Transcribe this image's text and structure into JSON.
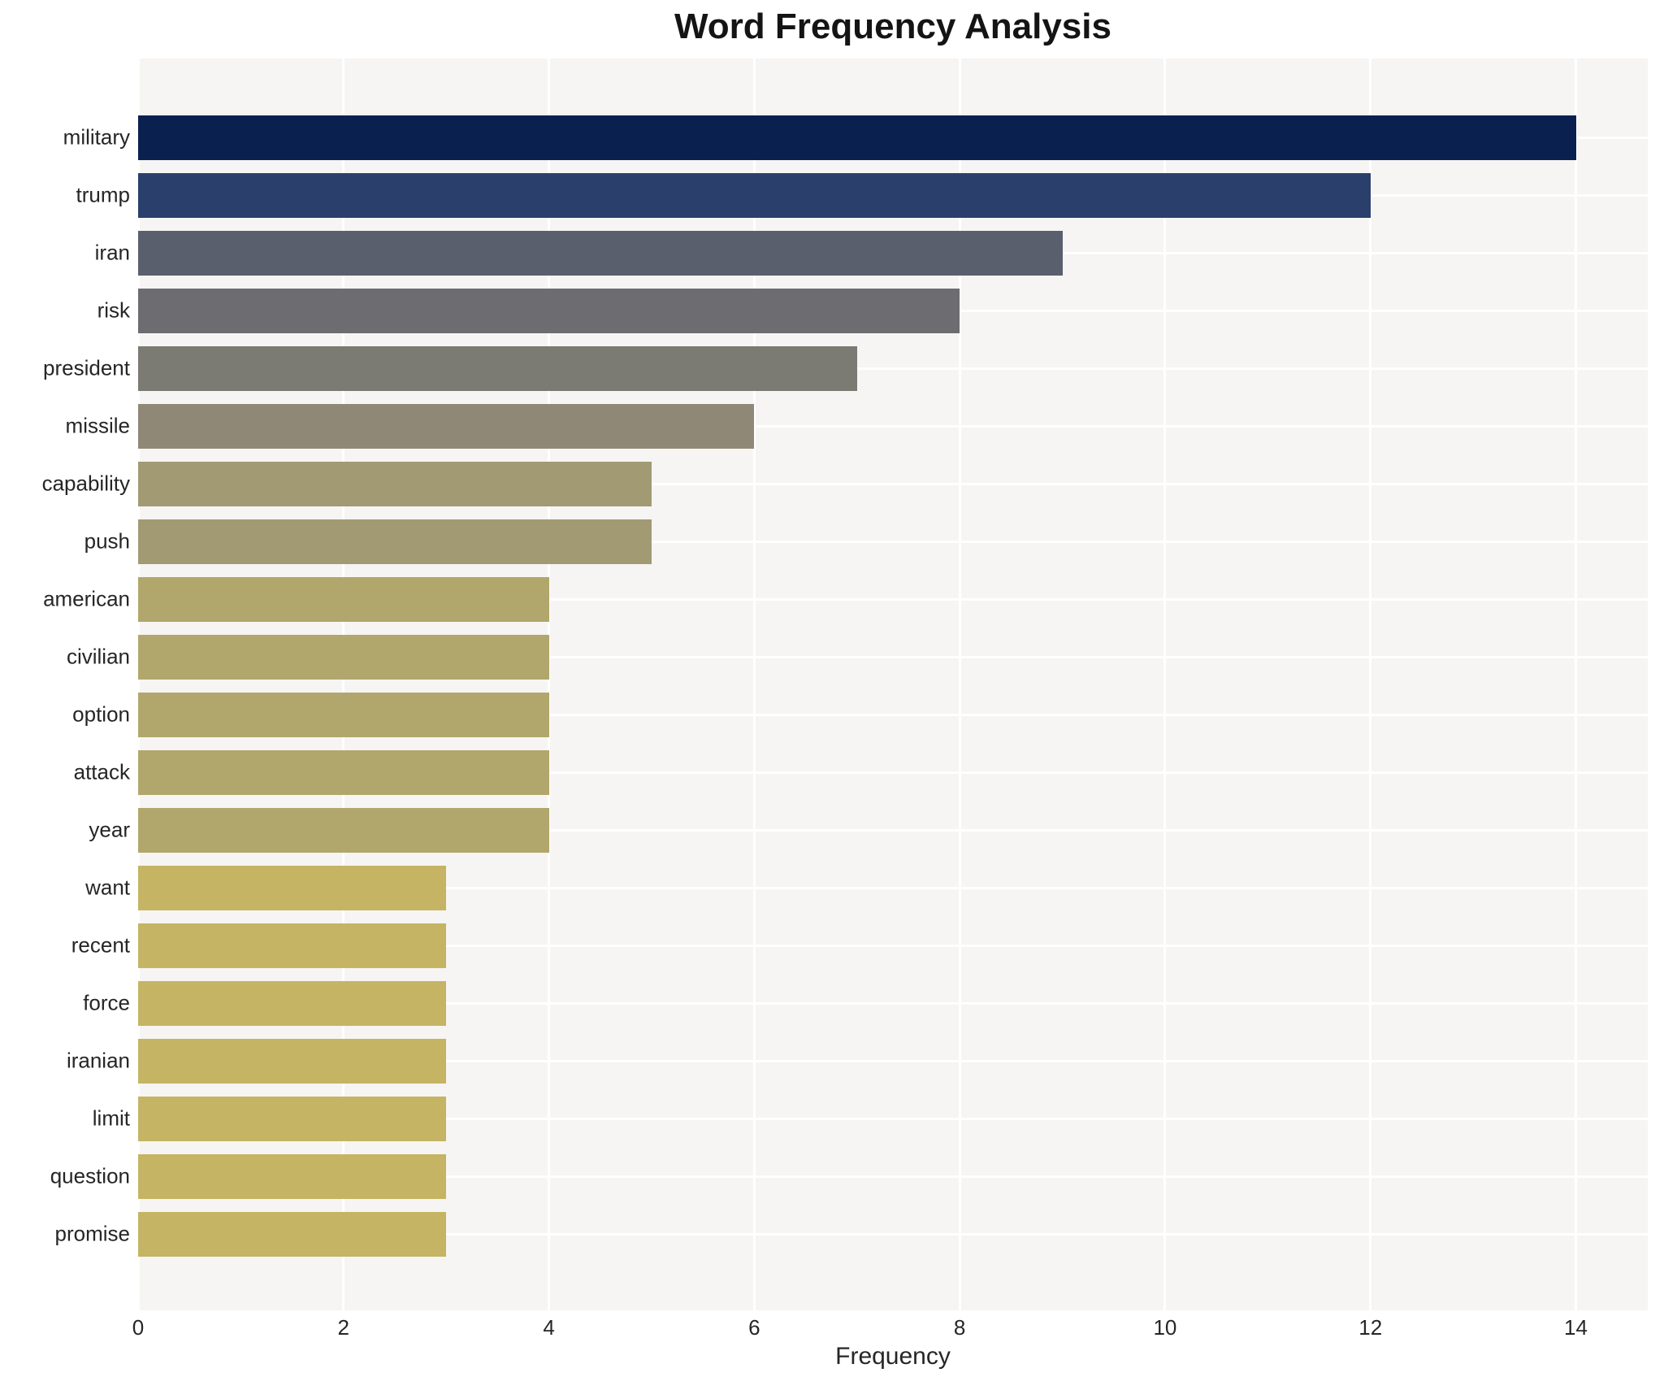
{
  "chart_data": {
    "type": "bar",
    "orientation": "horizontal",
    "title": "Word Frequency Analysis",
    "xlabel": "Frequency",
    "ylabel": "",
    "categories": [
      "military",
      "trump",
      "iran",
      "risk",
      "president",
      "missile",
      "capability",
      "push",
      "american",
      "civilian",
      "option",
      "attack",
      "year",
      "want",
      "recent",
      "force",
      "iranian",
      "limit",
      "question",
      "promise"
    ],
    "values": [
      14,
      12,
      9,
      8,
      7,
      6,
      5,
      5,
      4,
      4,
      4,
      4,
      4,
      3,
      3,
      3,
      3,
      3,
      3,
      3
    ],
    "bar_colors": [
      "#0a2150",
      "#2a3f6b",
      "#5a5f6e",
      "#6c6c71",
      "#7b7a73",
      "#8f8877",
      "#a19a73",
      "#a19a73",
      "#b1a76c",
      "#b1a76c",
      "#b1a76c",
      "#b1a76c",
      "#b1a76c",
      "#c5b463",
      "#c5b463",
      "#c5b463",
      "#c5b463",
      "#c5b463",
      "#c5b463",
      "#c5b463"
    ],
    "xticks": [
      0,
      2,
      4,
      6,
      8,
      10,
      12,
      14
    ],
    "xlim": [
      0,
      14.7
    ],
    "grid": true,
    "legend": false,
    "plot_bg_color": "#f6f5f3",
    "grid_color": "#ffffff",
    "text_color": "#262626"
  }
}
